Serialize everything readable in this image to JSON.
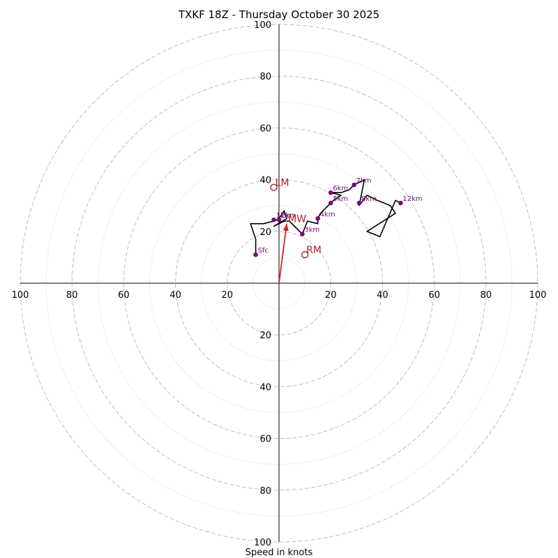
{
  "chart_data": {
    "type": "scatter",
    "subtype": "hodograph",
    "title": "TXKF 18Z - Thursday October 30 2025",
    "xlabel": "Speed in knots",
    "ylabel": "",
    "range_max": 100,
    "major_ring_step": 20,
    "minor_ring_step": 10,
    "tick_values": [
      100,
      80,
      60,
      40,
      20
    ],
    "x_tick_labels": [
      "100",
      "80",
      "60",
      "40",
      "20",
      "20",
      "40",
      "60",
      "80",
      "100"
    ],
    "y_tick_labels_upper": [
      "100",
      "80",
      "60",
      "40",
      "20"
    ],
    "y_tick_labels_lower": [
      "20",
      "40",
      "60",
      "80",
      "100"
    ],
    "hodograph_path": [
      [
        -9,
        11
      ],
      [
        -9,
        17
      ],
      [
        -11,
        23
      ],
      [
        -6,
        23
      ],
      [
        -2,
        24
      ],
      [
        0,
        25
      ],
      [
        2,
        28
      ],
      [
        3,
        25
      ],
      [
        -2,
        22
      ],
      [
        2,
        24
      ],
      [
        4,
        24
      ],
      [
        6,
        22
      ],
      [
        9,
        19
      ],
      [
        11,
        24
      ],
      [
        15,
        23
      ],
      [
        15,
        25
      ],
      [
        16,
        27
      ],
      [
        18,
        29
      ],
      [
        20,
        31
      ],
      [
        21,
        32
      ],
      [
        24,
        34
      ],
      [
        20,
        35
      ],
      [
        24,
        35
      ],
      [
        27,
        36
      ],
      [
        29,
        38
      ],
      [
        33,
        40
      ],
      [
        31,
        30
      ],
      [
        34,
        34
      ],
      [
        38,
        32
      ],
      [
        43,
        30
      ],
      [
        45,
        27
      ],
      [
        34,
        20
      ],
      [
        39,
        18
      ],
      [
        45,
        32
      ],
      [
        47,
        31
      ]
    ],
    "levels": [
      {
        "label": "Sfc",
        "u": -9,
        "v": 11
      },
      {
        "label": "1km",
        "u": -2,
        "v": 24.5
      },
      {
        "label": "2km",
        "u": 0,
        "v": 24.5
      },
      {
        "label": "3km",
        "u": 9,
        "v": 19
      },
      {
        "label": "4km",
        "u": 15,
        "v": 25
      },
      {
        "label": "5km",
        "u": 20,
        "v": 31
      },
      {
        "label": "6km",
        "u": 20,
        "v": 35
      },
      {
        "label": "7km",
        "u": 29,
        "v": 38
      },
      {
        "label": "8km",
        "u": 31,
        "v": 31
      },
      {
        "label": "12km",
        "u": 47,
        "v": 31
      }
    ],
    "storm_motions": [
      {
        "label": "LM",
        "u": -2,
        "v": 37
      },
      {
        "label": "MW",
        "u": 3,
        "v": 23
      },
      {
        "label": "RM",
        "u": 10,
        "v": 11
      }
    ],
    "mean_wind_vector": {
      "u": 3,
      "v": 23
    },
    "colors": {
      "hodograph": "#000000",
      "levels": "#7a0a7a",
      "storm_motion": "#b22222",
      "mean_wind_vector": "#d62020",
      "rings": "#bdbdbd"
    }
  }
}
